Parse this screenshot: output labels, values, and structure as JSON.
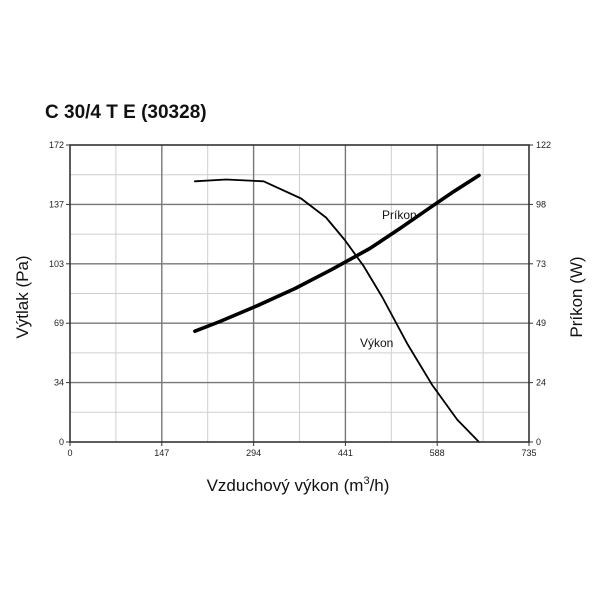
{
  "chart_data": {
    "type": "line",
    "title": "C 30/4 T E (30328)",
    "xlabel": "Vzduchový výkon",
    "xlabel_unit_prefix": "(m",
    "xlabel_unit_exp": "3",
    "xlabel_unit_suffix": "/h)",
    "ylabel_left": "Výtlak (Pa)",
    "ylabel_right": "Príkon (W)",
    "xlim": [
      0,
      735
    ],
    "ylim_left": [
      0,
      172
    ],
    "ylim_right": [
      0,
      122
    ],
    "x_ticks": [
      "0",
      "147",
      "294",
      "441",
      "588",
      "735"
    ],
    "y_left_ticks": [
      "0",
      "34",
      "69",
      "103",
      "137",
      "172"
    ],
    "y_right_ticks": [
      "0",
      "24",
      "49",
      "73",
      "98",
      "122"
    ],
    "grid": true,
    "series": [
      {
        "name": "Výkon",
        "axis": "left",
        "x": [
          200,
          250,
          310,
          370,
          410,
          440,
          470,
          500,
          540,
          580,
          620,
          655
        ],
        "y": [
          151,
          152,
          151,
          141,
          130,
          117,
          102,
          84,
          57,
          33,
          13,
          0
        ]
      },
      {
        "name": "Príkon",
        "axis": "right",
        "x": [
          200,
          240,
          300,
          360,
          420,
          480,
          530,
          575,
          615,
          655
        ],
        "y": [
          45.5,
          49.5,
          56,
          63,
          71,
          79.5,
          88,
          96,
          103,
          109.5
        ]
      }
    ]
  }
}
